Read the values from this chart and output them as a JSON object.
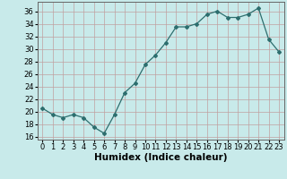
{
  "x": [
    0,
    1,
    2,
    3,
    4,
    5,
    6,
    7,
    8,
    9,
    10,
    11,
    12,
    13,
    14,
    15,
    16,
    17,
    18,
    19,
    20,
    21,
    22,
    23
  ],
  "y": [
    20.5,
    19.5,
    19.0,
    19.5,
    19.0,
    17.5,
    16.5,
    19.5,
    23.0,
    24.5,
    27.5,
    29.0,
    31.0,
    33.5,
    33.5,
    34.0,
    35.5,
    36.0,
    35.0,
    35.0,
    35.5,
    36.5,
    31.5,
    29.5
  ],
  "xlabel": "Humidex (Indice chaleur)",
  "xlim": [
    -0.5,
    23.5
  ],
  "ylim": [
    15.5,
    37.5
  ],
  "yticks": [
    16,
    18,
    20,
    22,
    24,
    26,
    28,
    30,
    32,
    34,
    36
  ],
  "xticks": [
    0,
    1,
    2,
    3,
    4,
    5,
    6,
    7,
    8,
    9,
    10,
    11,
    12,
    13,
    14,
    15,
    16,
    17,
    18,
    19,
    20,
    21,
    22,
    23
  ],
  "line_color": "#2d6e6e",
  "marker": "D",
  "marker_size": 2.0,
  "bg_color": "#c8eaea",
  "grid_color": "#c0a0a0",
  "xlabel_fontsize": 7.5,
  "tick_fontsize": 6.0
}
